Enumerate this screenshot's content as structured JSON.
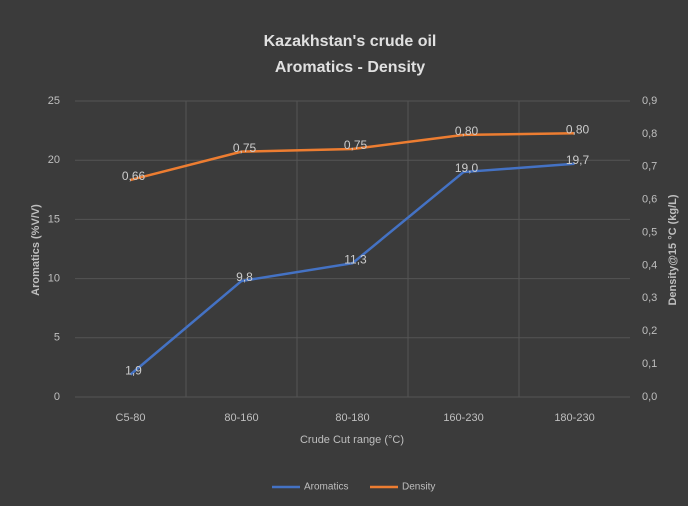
{
  "chart_data": {
    "type": "line",
    "title": "Kazakhstan's crude oil",
    "subtitle": "Aromatics - Density",
    "x_label": "Crude Cut range (°C)",
    "y_label": "Aromatics (%V/V)",
    "y2_label": "Density@15 °C (kg/L)",
    "categories": [
      "C5-80",
      "80-160",
      "80-180",
      "160-230",
      "180-230"
    ],
    "series": [
      {
        "name": "Aromatics",
        "color": "#4472c4",
        "values": [
          1.9,
          9.8,
          11.3,
          19.0,
          19.7
        ],
        "value_labels": [
          "1,9",
          "9,8",
          "11,3",
          "19,0",
          "19,7"
        ]
      },
      {
        "name": "Density",
        "color": "#ed7d31",
        "axis": "y2",
        "values": [
          0.66,
          0.746,
          0.754,
          0.797,
          0.802
        ],
        "value_labels": [
          "0,66",
          "0,75",
          "0,75",
          "0,80",
          "0,80"
        ]
      }
    ],
    "ylim": [
      0,
      25
    ],
    "yticks": [
      0,
      5,
      10,
      15,
      20,
      25
    ],
    "y2lim": [
      0,
      0.9
    ],
    "y2ticks": [
      {
        "value": 0,
        "label": "0,0"
      },
      {
        "value": 0.1,
        "label": "0,1"
      },
      {
        "value": 0.2,
        "label": "0,2"
      },
      {
        "value": 0.3,
        "label": "0,3"
      },
      {
        "value": 0.4,
        "label": "0,4"
      },
      {
        "value": 0.5,
        "label": "0,5"
      },
      {
        "value": 0.6,
        "label": "0,6"
      },
      {
        "value": 0.7,
        "label": "0,7"
      },
      {
        "value": 0.8,
        "label": "0,8"
      },
      {
        "value": 0.9,
        "label": "0,9"
      }
    ],
    "grid": true,
    "legend": "bottom"
  }
}
